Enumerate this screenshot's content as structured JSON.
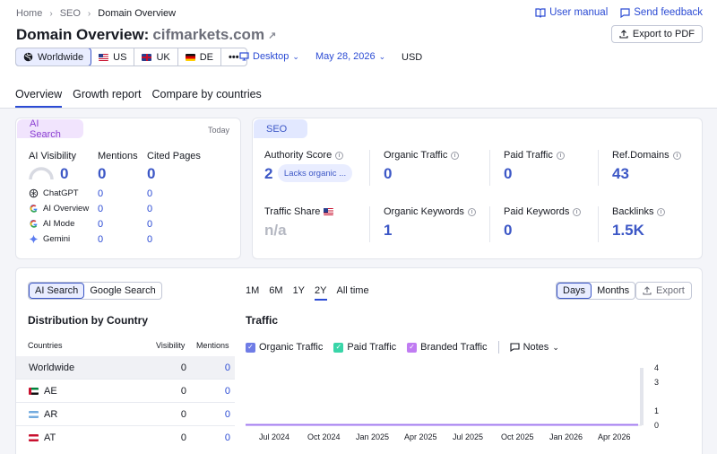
{
  "breadcrumb": [
    "Home",
    "SEO",
    "Domain Overview"
  ],
  "header": {
    "title": "Domain Overview:",
    "domain": "cifmarkets.com",
    "user_manual": "User manual",
    "send_feedback": "Send feedback",
    "export_pdf": "Export to PDF"
  },
  "databases": [
    {
      "label": "Worldwide",
      "active": true
    },
    {
      "label": "US"
    },
    {
      "label": "UK"
    },
    {
      "label": "DE"
    }
  ],
  "more_label": "•••",
  "device": "Desktop",
  "date": "May 28, 2026",
  "currency": "USD",
  "tabs": [
    "Overview",
    "Growth report",
    "Compare by countries"
  ],
  "ai_card": {
    "badge": "AI Search",
    "today": "Today",
    "visibility_label": "AI Visibility",
    "visibility": "0",
    "mentions_label": "Mentions",
    "mentions": "0",
    "cited_label": "Cited Pages",
    "cited": "0",
    "engines": [
      {
        "name": "ChatGPT",
        "mentions": "0",
        "cited": "0"
      },
      {
        "name": "AI Overview",
        "mentions": "0",
        "cited": "0"
      },
      {
        "name": "AI Mode",
        "mentions": "0",
        "cited": "0"
      },
      {
        "name": "Gemini",
        "mentions": "0",
        "cited": "0"
      }
    ]
  },
  "seo_card": {
    "badge": "SEO",
    "authority_label": "Authority Score",
    "authority": "2",
    "authority_tag": "Lacks organic ...",
    "organic_traffic_label": "Organic Traffic",
    "organic_traffic": "0",
    "paid_traffic_label": "Paid Traffic",
    "paid_traffic": "0",
    "ref_domains_label": "Ref.Domains",
    "ref_domains": "43",
    "traffic_share_label": "Traffic Share",
    "traffic_share": "n/a",
    "organic_keywords_label": "Organic Keywords",
    "organic_keywords": "1",
    "paid_keywords_label": "Paid Keywords",
    "paid_keywords": "0",
    "backlinks_label": "Backlinks",
    "backlinks": "1.5K"
  },
  "bottom": {
    "search_toggle": [
      "AI Search",
      "Google Search"
    ],
    "periods": [
      "1M",
      "6M",
      "1Y",
      "2Y",
      "All time"
    ],
    "active_period": "2Y",
    "granularity": [
      "Days",
      "Months"
    ],
    "export": "Export",
    "distribution_title": "Distribution by Country",
    "col_countries": "Countries",
    "col_visibility": "Visibility",
    "col_mentions": "Mentions",
    "rows": [
      {
        "country": "Worldwide",
        "visibility": "0",
        "mentions": "0"
      },
      {
        "country": "AE",
        "visibility": "0",
        "mentions": "0"
      },
      {
        "country": "AR",
        "visibility": "0",
        "mentions": "0"
      },
      {
        "country": "AT",
        "visibility": "0",
        "mentions": "0"
      }
    ],
    "traffic_title": "Traffic",
    "legend": [
      "Organic Traffic",
      "Paid Traffic",
      "Branded Traffic"
    ],
    "notes": "Notes"
  },
  "colors": {
    "organic": "#6f7ce6",
    "paid": "#39d5a8",
    "branded": "#c07cf2",
    "line": "#a37bf0",
    "accent": "#2b4bd4"
  },
  "chart_data": {
    "type": "line",
    "title": "Traffic",
    "x": [
      "Jul 2024",
      "Oct 2024",
      "Jan 2025",
      "Apr 2025",
      "Jul 2025",
      "Oct 2025",
      "Jan 2026",
      "Apr 2026"
    ],
    "y_ticks": [
      "4",
      "3",
      "1",
      "0"
    ],
    "ylim": [
      0,
      4
    ],
    "series": [
      {
        "name": "Organic Traffic",
        "values": [
          0,
          0,
          0,
          0,
          0,
          0,
          0,
          0
        ]
      },
      {
        "name": "Paid Traffic",
        "values": [
          0,
          0,
          0,
          0,
          0,
          0,
          0,
          0
        ]
      },
      {
        "name": "Branded Traffic",
        "values": [
          0,
          0,
          0,
          0,
          0,
          0,
          0,
          0
        ]
      }
    ],
    "grid": true
  }
}
